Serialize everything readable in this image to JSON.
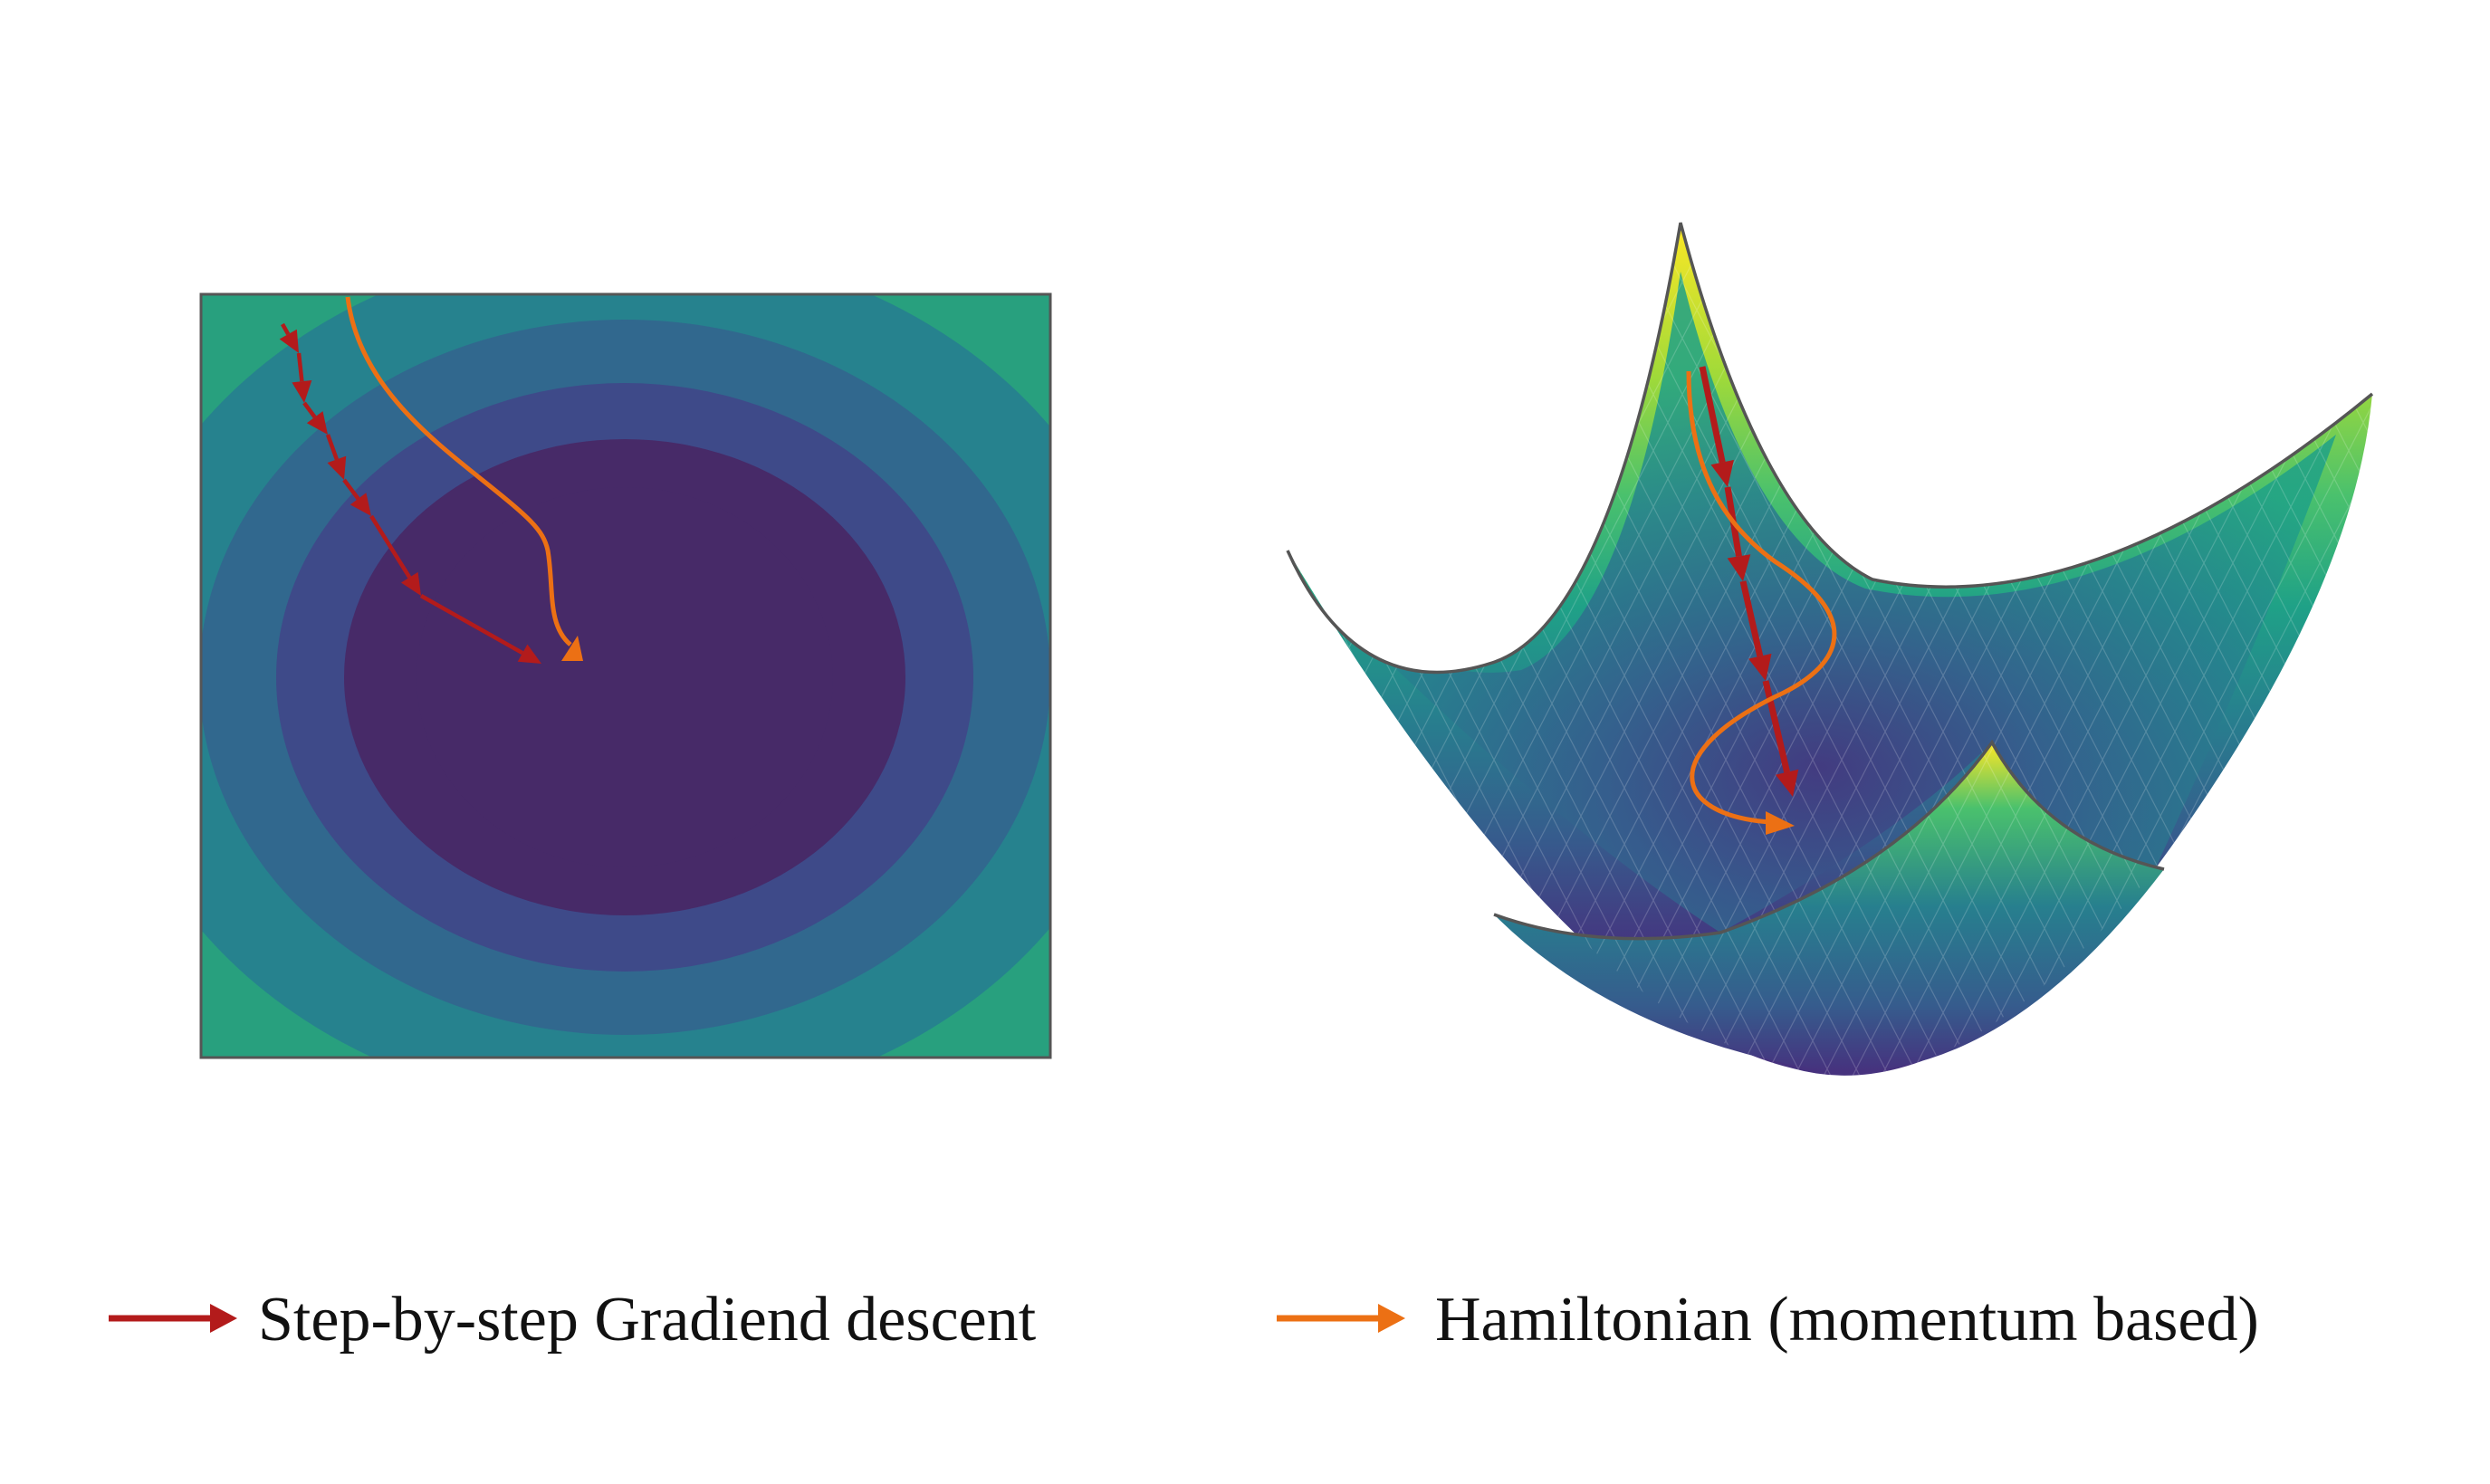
{
  "legend": {
    "gradient_descent_label": "Step-by-step Gradiend descent",
    "hamiltonian_label": "Hamiltonian (momentum based)"
  },
  "colors": {
    "gradient_descent": "#b31b1b",
    "hamiltonian": "#ec7014",
    "outline": "#555555",
    "viridis": [
      "#440154",
      "#46327e",
      "#365c8d",
      "#277f8e",
      "#1fa187",
      "#4ac16d",
      "#a0da39",
      "#fde725"
    ],
    "contour_levels": [
      "#472a68",
      "#3e4a89",
      "#31688e",
      "#26828e",
      "#28a07e",
      "#5bbd6a",
      "#a4cf45",
      "#e2e52c"
    ]
  },
  "panels": {
    "left": "contour-map",
    "right": "surface-3d"
  },
  "icons": {
    "gradient_descent_arrow": "arrow-right-icon",
    "hamiltonian_arrow": "arrow-right-icon"
  }
}
